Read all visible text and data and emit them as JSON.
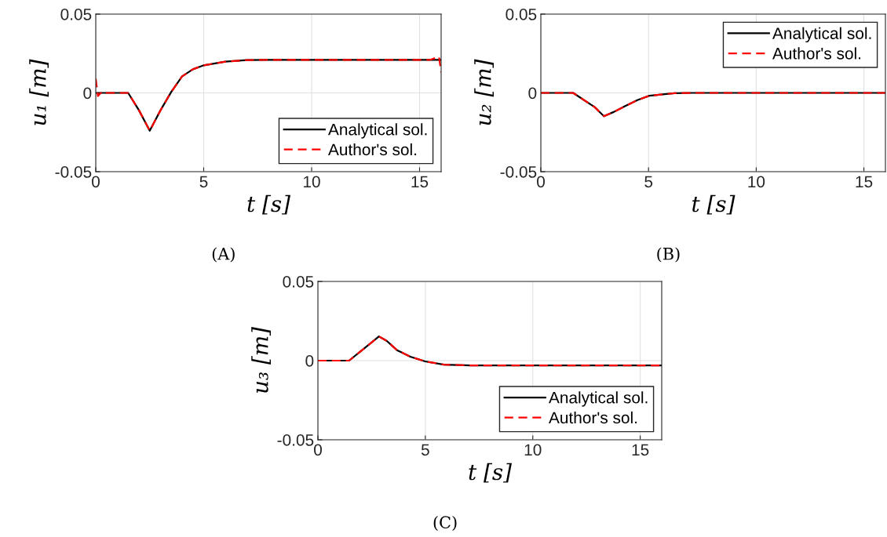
{
  "chart_data": [
    {
      "type": "line",
      "xlabel": "t [s]",
      "ylabel": "u₁ [m]",
      "annotations": [
        "(A)"
      ],
      "xlim": [
        0,
        16
      ],
      "ylim": [
        -0.05,
        0.05
      ],
      "xticks": [
        0,
        5,
        10,
        15
      ],
      "yticks": [
        -0.05,
        0,
        0.05
      ],
      "grid": true,
      "legend": "bottom right",
      "series": [
        {
          "name": "Analytical sol.",
          "color": "#000000",
          "line_style": "solid",
          "x": [
            0,
            1.5,
            2.0,
            2.5,
            3.0,
            3.5,
            4.0,
            4.5,
            5.0,
            6.0,
            7.0,
            8.0,
            10.0,
            16.0
          ],
          "values": [
            0,
            0,
            -0.011,
            -0.024,
            -0.011,
            0.0007,
            0.0105,
            0.015,
            0.0175,
            0.0198,
            0.0208,
            0.021,
            0.021,
            0.021
          ]
        },
        {
          "name": "Author's sol.",
          "color": "#ff0000",
          "line_style": "dashed",
          "x": [
            0,
            0.1,
            0.3,
            0.5,
            1.5,
            2.0,
            2.5,
            3.0,
            3.5,
            4.0,
            4.5,
            5.0,
            6.0,
            7.0,
            8.0,
            10.0,
            15.5,
            15.9,
            16.0
          ],
          "values": [
            0.009,
            -0.002,
            0.001,
            0,
            0,
            -0.011,
            -0.024,
            -0.011,
            0.0007,
            0.0105,
            0.015,
            0.0175,
            0.0198,
            0.0208,
            0.021,
            0.021,
            0.021,
            0.023,
            0.013
          ]
        }
      ]
    },
    {
      "type": "line",
      "xlabel": "t [s]",
      "ylabel": "u₂ [m]",
      "annotations": [
        "(B)"
      ],
      "xlim": [
        0,
        16
      ],
      "ylim": [
        -0.05,
        0.05
      ],
      "xticks": [
        0,
        5,
        10,
        15
      ],
      "yticks": [
        -0.05,
        0,
        0.05
      ],
      "grid": true,
      "legend": "top right",
      "series": [
        {
          "name": "Analytical sol.",
          "color": "#000000",
          "line_style": "solid",
          "x": [
            0,
            1.5,
            2.5,
            2.93,
            3.4,
            3.9,
            4.5,
            5.04,
            6.2,
            7.0,
            16.0
          ],
          "values": [
            0,
            0,
            -0.009,
            -0.0148,
            -0.012,
            -0.0085,
            -0.0045,
            -0.0018,
            -0.0002,
            0,
            0
          ]
        },
        {
          "name": "Author's sol.",
          "color": "#ff0000",
          "line_style": "dashed",
          "x": [
            0,
            1.5,
            2.5,
            2.93,
            3.4,
            3.9,
            4.5,
            5.04,
            6.2,
            7.0,
            16.0
          ],
          "values": [
            0,
            0,
            -0.009,
            -0.0148,
            -0.012,
            -0.0085,
            -0.0045,
            -0.0018,
            -0.0002,
            0,
            0
          ]
        }
      ]
    },
    {
      "type": "line",
      "xlabel": "t [s]",
      "ylabel": "u₃ [m]",
      "annotations": [
        "(C)"
      ],
      "xlim": [
        0,
        16
      ],
      "ylim": [
        -0.05,
        0.05
      ],
      "xticks": [
        0,
        5,
        10,
        15
      ],
      "yticks": [
        -0.05,
        0,
        0.05
      ],
      "grid": true,
      "legend": "bottom right",
      "series": [
        {
          "name": "Analytical sol.",
          "color": "#000000",
          "line_style": "solid",
          "x": [
            0,
            1.45,
            2.0,
            2.54,
            2.84,
            3.2,
            3.68,
            4.3,
            4.99,
            5.86,
            7.1,
            16.0
          ],
          "values": [
            0,
            0,
            0.006,
            0.0119,
            0.0153,
            0.0125,
            0.0066,
            0.0025,
            -0.0005,
            -0.0025,
            -0.003,
            -0.003
          ]
        },
        {
          "name": "Author's sol.",
          "color": "#ff0000",
          "line_style": "dashed",
          "x": [
            0,
            1.45,
            2.0,
            2.54,
            2.84,
            3.2,
            3.68,
            4.3,
            4.99,
            5.86,
            7.1,
            15.9,
            16.0
          ],
          "values": [
            0,
            0,
            0.006,
            0.0119,
            0.0153,
            0.0125,
            0.0066,
            0.0025,
            -0.0005,
            -0.0025,
            -0.003,
            -0.003,
            -0.001
          ]
        }
      ]
    }
  ]
}
